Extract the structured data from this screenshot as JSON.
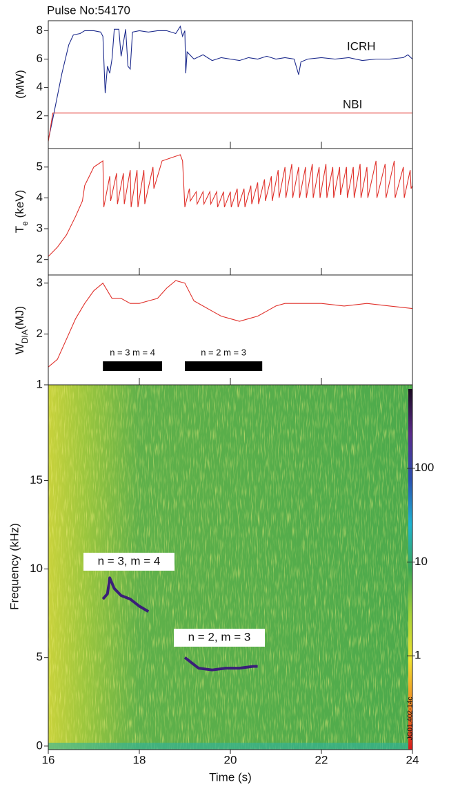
{
  "chart_data": [
    {
      "type": "line",
      "title": "Pulse No:54170",
      "ylabel": "(MW)",
      "xlim": [
        16,
        24
      ],
      "xticks": [
        16,
        18,
        20,
        22,
        24
      ],
      "ylim": [
        -0.3,
        8.7
      ],
      "yticks": [
        2,
        4,
        6,
        8
      ],
      "series": [
        {
          "name": "ICRH",
          "color": "#1c2a8c",
          "x": [
            16.0,
            16.1,
            16.3,
            16.45,
            16.55,
            16.7,
            16.8,
            17.0,
            17.15,
            17.2,
            17.25,
            17.3,
            17.35,
            17.4,
            17.45,
            17.55,
            17.6,
            17.7,
            17.75,
            17.8,
            17.85,
            18.0,
            18.2,
            18.4,
            18.6,
            18.8,
            18.9,
            18.95,
            19.0,
            19.02,
            19.05,
            19.2,
            19.4,
            19.6,
            19.8,
            20.0,
            20.2,
            20.4,
            20.6,
            20.8,
            21.0,
            21.2,
            21.4,
            21.5,
            21.55,
            21.7,
            22.0,
            22.3,
            22.6,
            22.9,
            23.2,
            23.5,
            23.8,
            23.9,
            24.0
          ],
          "values": [
            0.3,
            1.8,
            5.0,
            7.0,
            7.7,
            7.8,
            8.0,
            8.0,
            7.9,
            7.6,
            3.6,
            5.5,
            5.0,
            6.0,
            8.1,
            8.1,
            6.2,
            8.1,
            5.5,
            5.3,
            7.9,
            8.0,
            7.9,
            8.0,
            8.0,
            7.8,
            8.3,
            7.6,
            8.0,
            5.0,
            6.5,
            6.0,
            6.3,
            5.9,
            6.1,
            6.0,
            5.9,
            6.1,
            6.0,
            6.2,
            6.0,
            6.1,
            6.0,
            4.9,
            5.8,
            6.0,
            6.1,
            6.0,
            6.1,
            5.9,
            6.0,
            6.0,
            6.1,
            6.3,
            6.0
          ]
        },
        {
          "name": "NBI",
          "color": "#e0302a",
          "x": [
            16.0,
            16.1,
            24.0
          ],
          "values": [
            0.2,
            2.2,
            2.2
          ]
        }
      ]
    },
    {
      "type": "line",
      "ylabel": [
        "T",
        "e",
        " (keV)"
      ],
      "xlim": [
        16,
        24
      ],
      "xticks": [
        16,
        18,
        20,
        22,
        24
      ],
      "ylim": [
        1.5,
        5.6
      ],
      "yticks": [
        2,
        3,
        4,
        5
      ],
      "series": [
        {
          "color": "#e0302a",
          "x": [
            16.0,
            16.2,
            16.4,
            16.6,
            16.75,
            16.8,
            17.0,
            17.2,
            17.22,
            17.35,
            17.37,
            17.5,
            17.52,
            17.65,
            17.67,
            17.8,
            17.82,
            17.95,
            17.97,
            18.1,
            18.12,
            18.3,
            18.32,
            18.5,
            18.7,
            18.9,
            18.95,
            19.0,
            19.1,
            19.12,
            19.25,
            19.27,
            19.4,
            19.42,
            19.55,
            19.57,
            19.7,
            19.72,
            19.85,
            19.87,
            20.0,
            20.02,
            20.15,
            20.17,
            20.3,
            20.32,
            20.45,
            20.47,
            20.6,
            20.62,
            20.75,
            20.77,
            20.9,
            20.92,
            21.05,
            21.07,
            21.2,
            21.22,
            21.35,
            21.37,
            21.5,
            21.52,
            21.65,
            21.67,
            21.8,
            21.82,
            21.95,
            21.97,
            22.1,
            22.12,
            22.25,
            22.27,
            22.4,
            22.42,
            22.55,
            22.57,
            22.7,
            22.72,
            22.85,
            22.87,
            23.0,
            23.02,
            23.2,
            23.22,
            23.4,
            23.42,
            23.6,
            23.62,
            23.8,
            23.82,
            23.95,
            23.97,
            24.0
          ],
          "values": [
            2.1,
            2.4,
            2.8,
            3.4,
            3.9,
            4.4,
            5.0,
            5.2,
            3.7,
            4.7,
            3.9,
            4.8,
            3.8,
            4.8,
            3.8,
            4.9,
            3.7,
            4.9,
            3.7,
            4.9,
            3.8,
            5.0,
            4.3,
            5.2,
            5.3,
            5.4,
            5.2,
            3.7,
            4.3,
            3.9,
            4.2,
            3.8,
            4.2,
            3.8,
            4.2,
            3.8,
            4.2,
            3.7,
            4.2,
            3.7,
            4.2,
            3.7,
            4.3,
            3.7,
            4.3,
            3.7,
            4.4,
            3.8,
            4.5,
            3.8,
            4.6,
            3.9,
            4.7,
            3.9,
            4.9,
            4.0,
            5.0,
            4.0,
            5.1,
            4.0,
            5.0,
            4.0,
            5.0,
            4.0,
            5.1,
            4.0,
            5.0,
            4.0,
            5.1,
            4.0,
            5.0,
            4.0,
            5.0,
            4.1,
            5.0,
            4.0,
            5.0,
            4.0,
            5.1,
            4.0,
            5.0,
            4.0,
            5.2,
            4.0,
            5.1,
            4.0,
            5.2,
            4.0,
            5.0,
            4.0,
            4.9,
            4.3,
            4.4
          ]
        }
      ]
    },
    {
      "type": "line",
      "ylabel": [
        "W",
        "DIA",
        "(MJ)"
      ],
      "xlim": [
        16,
        24
      ],
      "xticks": [
        16,
        18,
        20,
        22,
        24
      ],
      "ylim": [
        1,
        3.16
      ],
      "yticks": [
        1,
        2,
        3
      ],
      "series": [
        {
          "color": "#e0302a",
          "x": [
            16.0,
            16.2,
            16.4,
            16.6,
            16.8,
            17.0,
            17.2,
            17.4,
            17.6,
            17.8,
            18.0,
            18.2,
            18.4,
            18.6,
            18.8,
            19.0,
            19.2,
            19.4,
            19.6,
            19.8,
            20.0,
            20.2,
            20.4,
            20.6,
            20.8,
            21.0,
            21.2,
            21.5,
            22.0,
            22.5,
            23.0,
            23.5,
            24.0
          ],
          "values": [
            1.35,
            1.5,
            1.9,
            2.3,
            2.6,
            2.85,
            3.0,
            2.7,
            2.7,
            2.6,
            2.6,
            2.65,
            2.7,
            2.9,
            3.05,
            3.0,
            2.65,
            2.55,
            2.45,
            2.35,
            2.3,
            2.25,
            2.3,
            2.35,
            2.45,
            2.55,
            2.6,
            2.6,
            2.6,
            2.55,
            2.6,
            2.55,
            2.5
          ]
        }
      ],
      "intervals": [
        {
          "label": "n = 3  m = 4",
          "start": 17.2,
          "end": 18.5
        },
        {
          "label": "n = 2  m = 3",
          "start": 19.0,
          "end": 20.7
        }
      ]
    },
    {
      "type": "spectrogram",
      "ylabel": "Frequency (kHz)",
      "xlabel": "Time (s)",
      "xlim": [
        16,
        24
      ],
      "xticks": [
        16,
        18,
        20,
        22,
        24
      ],
      "ylim": [
        -0.2,
        20.4
      ],
      "yticks": [
        0,
        5,
        10,
        15
      ],
      "series": [
        {
          "name": "n = 3, m = 4",
          "color": "#3a1f78",
          "x": [
            17.2,
            17.3,
            17.35,
            17.45,
            17.6,
            17.8,
            18.0,
            18.2
          ],
          "values": [
            8.3,
            8.6,
            9.5,
            8.9,
            8.5,
            8.3,
            7.9,
            7.6
          ]
        },
        {
          "name": "n = 2, m = 3",
          "color": "#3a1f78",
          "x": [
            19.0,
            19.1,
            19.3,
            19.6,
            19.9,
            20.2,
            20.5,
            20.6
          ],
          "values": [
            5.0,
            4.8,
            4.4,
            4.3,
            4.4,
            4.4,
            4.5,
            4.5
          ]
        }
      ],
      "colorbar": {
        "log": true,
        "lim": [
          0.1,
          700
        ],
        "ticks": [
          1,
          10,
          100
        ],
        "colors": [
          "#d7191c",
          "#f08a24",
          "#f0e130",
          "#a8d23a",
          "#3aa655",
          "#1eb4d2",
          "#2a4fb0",
          "#5a2a8a",
          "#1a0a20"
        ]
      },
      "annotation": "JG01.402-14c"
    }
  ]
}
